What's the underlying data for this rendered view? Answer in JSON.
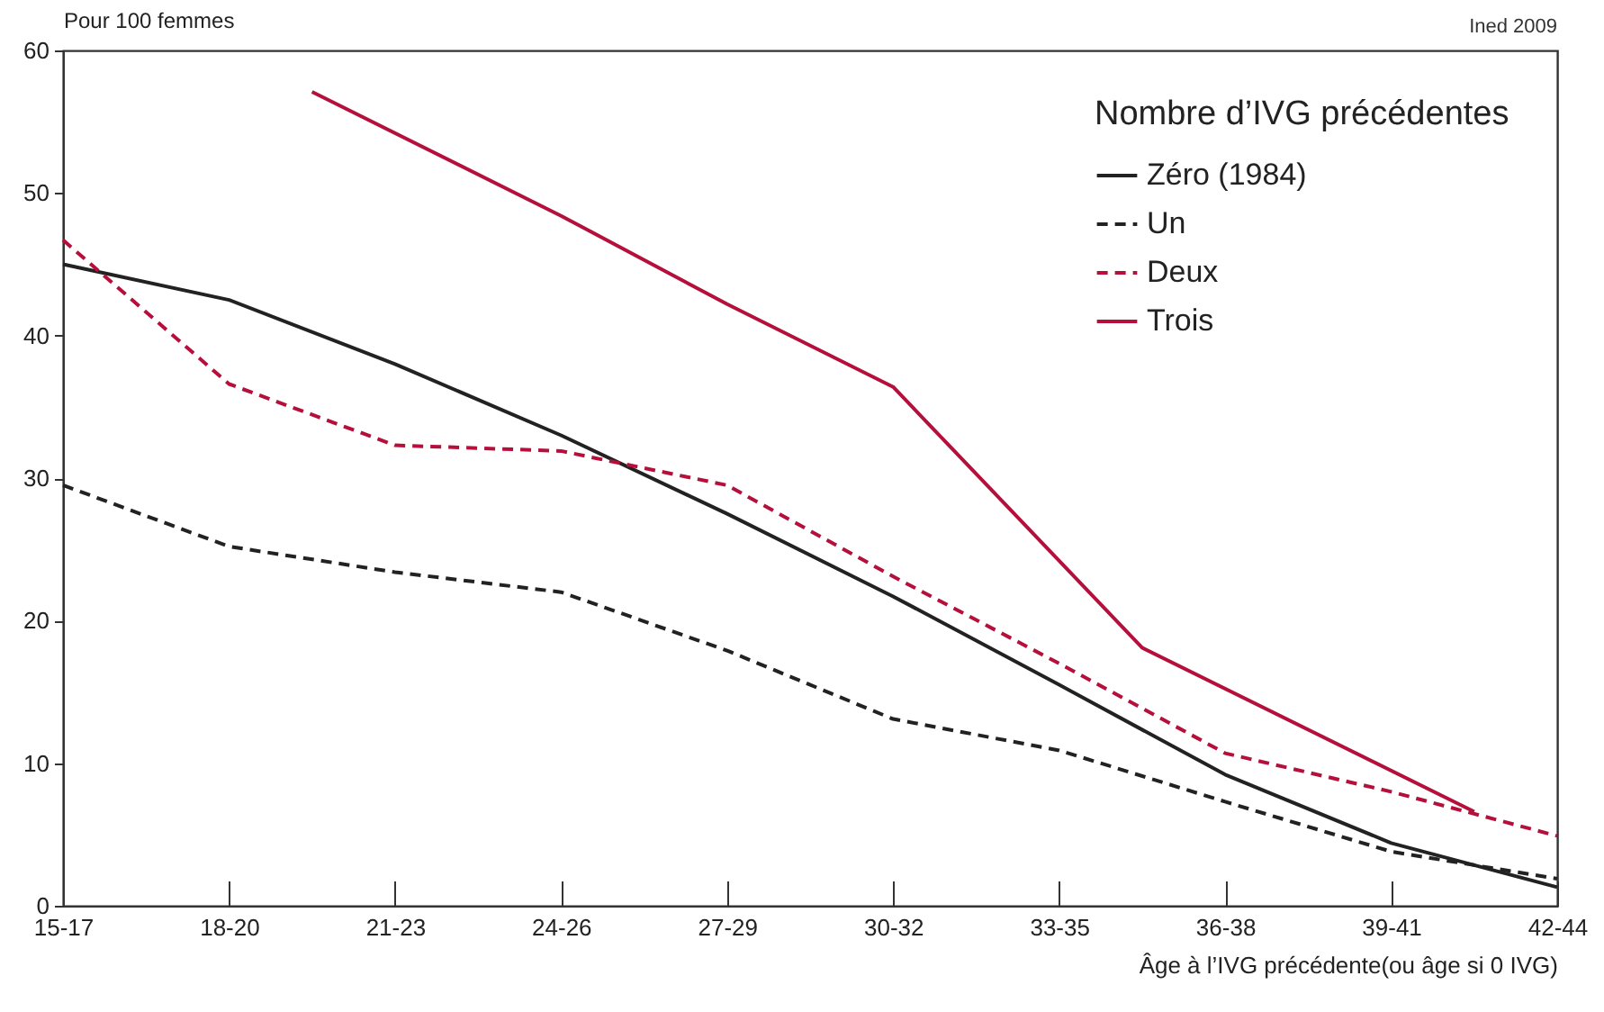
{
  "chart_data": {
    "type": "line",
    "ylabel": "Pour 100 femmes",
    "xlabel": "Âge à l’IVG précédente(ou âge si 0 IVG)",
    "legend_title": "Nombre d’IVG précédentes",
    "legend": "top right",
    "annotations": [
      "Ined 2009"
    ],
    "categories": [
      "15-17",
      null,
      "18-20",
      null,
      "21-23",
      null,
      "24-26",
      null,
      "27-29",
      null,
      "30-32",
      null,
      "33-35",
      null,
      "36-38",
      null,
      "39-41",
      null,
      "42-44"
    ],
    "ylim": [
      0,
      60
    ],
    "yticks": [
      0,
      10,
      20,
      30,
      40,
      50,
      60
    ],
    "grid": false,
    "series": [
      {
        "name": "Zéro (1984)",
        "color": "#222222",
        "line_style": "solid",
        "values": [
          45,
          null,
          42.5,
          null,
          38,
          null,
          33,
          null,
          27.5,
          null,
          21.7,
          null,
          15.5,
          null,
          9.2,
          null,
          4.4,
          null,
          1.3
        ]
      },
      {
        "name": "Un",
        "color": "#222222",
        "line_style": "dashed",
        "values": [
          29.5,
          null,
          25.2,
          null,
          23.4,
          null,
          22,
          null,
          17.9,
          null,
          13.1,
          null,
          10.9,
          null,
          7.3,
          null,
          3.8,
          null,
          1.9
        ]
      },
      {
        "name": "Deux",
        "color": "#b5103c",
        "line_style": "dashed",
        "values": [
          46.7,
          null,
          36.6,
          null,
          32.3,
          null,
          31.9,
          null,
          29.5,
          null,
          23.1,
          null,
          17,
          null,
          10.7,
          null,
          8,
          null,
          4.9
        ]
      },
      {
        "name": "Trois",
        "color": "#b5103c",
        "line_style": "solid",
        "values": [
          null,
          null,
          null,
          57.1,
          null,
          null,
          48.4,
          null,
          42.2,
          null,
          36.4,
          null,
          null,
          18.1,
          null,
          null,
          null,
          6.6,
          null
        ]
      }
    ]
  }
}
